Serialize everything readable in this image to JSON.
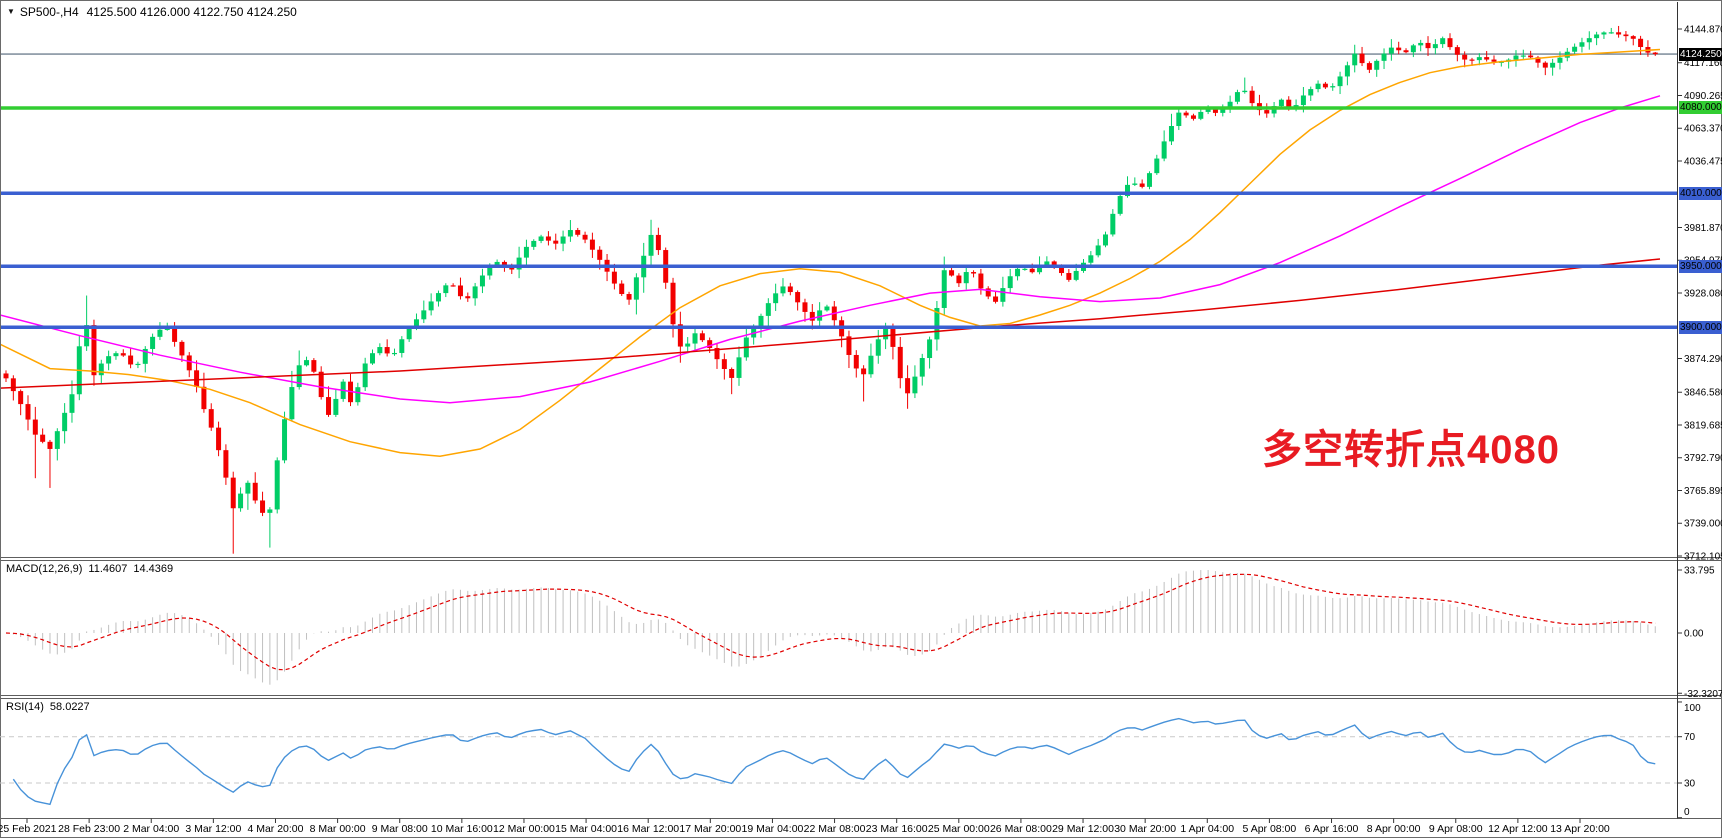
{
  "window": {
    "symbol": "SP500-,H4",
    "ohlc_text": "4125.500 4126.000 4122.750 4124.250"
  },
  "indicators": {
    "macd": {
      "label": "MACD(12,26,9)",
      "main": "11.4607",
      "signal": "14.4369"
    },
    "rsi": {
      "label": "RSI(14)",
      "value": "58.0227"
    }
  },
  "annotation": {
    "text": "多空转折点4080",
    "color": "#e81b22"
  },
  "chart_data": [
    {
      "type": "candlestick",
      "title": "SP500-,H4",
      "current_bar": {
        "open": 4125.5,
        "high": 4126.0,
        "low": 4122.75,
        "close": 4124.25
      },
      "price_range": {
        "top": 4144.87,
        "bottom": 3712.105
      },
      "y_axis_ticks": [
        "4144.870",
        "4117.160",
        "4090.265",
        "4063.370",
        "4036.475",
        "3981.870",
        "3954.975",
        "3928.080",
        "3874.290",
        "3846.580",
        "3819.685",
        "3792.790",
        "3765.895",
        "3739.000",
        "3712.105"
      ],
      "current_price": {
        "value": 4124.25,
        "label": "4124.250",
        "line_color": "#708090",
        "box_bg": "#000000",
        "box_fg": "#ffffff"
      },
      "levels": [
        {
          "price": 4080,
          "label": "4080.000",
          "color": "#32cd32"
        },
        {
          "price": 4010,
          "label": "4010.000",
          "color": "#3a5fd1"
        },
        {
          "price": 3950,
          "label": "3950.000",
          "color": "#3a5fd1"
        },
        {
          "price": 3900,
          "label": "3900.000",
          "color": "#3a5fd1"
        }
      ],
      "colors": {
        "up": "#00cd66",
        "down": "#f20000"
      },
      "bars": {
        "count": 226,
        "first_x": 6,
        "spacing": 7.33,
        "body_width": 5
      },
      "close_path": [
        [
          6,
          3858
        ],
        [
          20,
          3838
        ],
        [
          35,
          3812
        ],
        [
          50,
          3800
        ],
        [
          60,
          3820
        ],
        [
          72,
          3845
        ],
        [
          85,
          3915
        ],
        [
          92,
          3858
        ],
        [
          105,
          3875
        ],
        [
          120,
          3880
        ],
        [
          135,
          3865
        ],
        [
          150,
          3890
        ],
        [
          165,
          3902
        ],
        [
          180,
          3880
        ],
        [
          195,
          3855
        ],
        [
          205,
          3830
        ],
        [
          215,
          3810
        ],
        [
          228,
          3770
        ],
        [
          235,
          3745
        ],
        [
          245,
          3778
        ],
        [
          255,
          3758
        ],
        [
          268,
          3740
        ],
        [
          278,
          3795
        ],
        [
          288,
          3840
        ],
        [
          298,
          3868
        ],
        [
          310,
          3875
        ],
        [
          320,
          3845
        ],
        [
          330,
          3825
        ],
        [
          342,
          3858
        ],
        [
          352,
          3835
        ],
        [
          365,
          3870
        ],
        [
          378,
          3885
        ],
        [
          392,
          3875
        ],
        [
          405,
          3895
        ],
        [
          420,
          3910
        ],
        [
          435,
          3925
        ],
        [
          450,
          3938
        ],
        [
          465,
          3920
        ],
        [
          480,
          3940
        ],
        [
          495,
          3955
        ],
        [
          510,
          3945
        ],
        [
          525,
          3965
        ],
        [
          540,
          3975
        ],
        [
          555,
          3968
        ],
        [
          570,
          3980
        ],
        [
          585,
          3972
        ],
        [
          600,
          3955
        ],
        [
          615,
          3935
        ],
        [
          628,
          3920
        ],
        [
          640,
          3950
        ],
        [
          652,
          3978
        ],
        [
          662,
          3955
        ],
        [
          672,
          3905
        ],
        [
          682,
          3880
        ],
        [
          695,
          3895
        ],
        [
          708,
          3885
        ],
        [
          720,
          3870
        ],
        [
          732,
          3858
        ],
        [
          745,
          3890
        ],
        [
          758,
          3905
        ],
        [
          772,
          3925
        ],
        [
          785,
          3935
        ],
        [
          798,
          3920
        ],
        [
          812,
          3905
        ],
        [
          825,
          3920
        ],
        [
          838,
          3900
        ],
        [
          850,
          3875
        ],
        [
          862,
          3858
        ],
        [
          875,
          3885
        ],
        [
          888,
          3905
        ],
        [
          898,
          3862
        ],
        [
          908,
          3845
        ],
        [
          920,
          3870
        ],
        [
          932,
          3895
        ],
        [
          945,
          3950
        ],
        [
          958,
          3935
        ],
        [
          970,
          3950
        ],
        [
          982,
          3930
        ],
        [
          995,
          3920
        ],
        [
          1008,
          3940
        ],
        [
          1020,
          3950
        ],
        [
          1032,
          3945
        ],
        [
          1045,
          3955
        ],
        [
          1058,
          3948
        ],
        [
          1068,
          3938
        ],
        [
          1080,
          3950
        ],
        [
          1092,
          3960
        ],
        [
          1105,
          3975
        ],
        [
          1118,
          4005
        ],
        [
          1130,
          4020
        ],
        [
          1142,
          4015
        ],
        [
          1155,
          4035
        ],
        [
          1168,
          4060
        ],
        [
          1180,
          4078
        ],
        [
          1192,
          4070
        ],
        [
          1205,
          4080
        ],
        [
          1218,
          4075
        ],
        [
          1230,
          4085
        ],
        [
          1242,
          4098
        ],
        [
          1255,
          4080
        ],
        [
          1268,
          4075
        ],
        [
          1280,
          4088
        ],
        [
          1292,
          4078
        ],
        [
          1305,
          4092
        ],
        [
          1318,
          4100
        ],
        [
          1330,
          4095
        ],
        [
          1342,
          4108
        ],
        [
          1355,
          4125
        ],
        [
          1368,
          4110
        ],
        [
          1380,
          4122
        ],
        [
          1392,
          4130
        ],
        [
          1405,
          4125
        ],
        [
          1418,
          4135
        ],
        [
          1430,
          4128
        ],
        [
          1442,
          4138
        ],
        [
          1455,
          4125
        ],
        [
          1468,
          4118
        ],
        [
          1480,
          4122
        ],
        [
          1492,
          4118
        ],
        [
          1505,
          4118
        ],
        [
          1518,
          4124
        ],
        [
          1530,
          4122
        ],
        [
          1545,
          4113
        ],
        [
          1558,
          4120
        ],
        [
          1570,
          4128
        ],
        [
          1582,
          4134
        ],
        [
          1595,
          4140
        ],
        [
          1608,
          4143
        ],
        [
          1620,
          4140
        ],
        [
          1632,
          4138
        ],
        [
          1645,
          4126
        ],
        [
          1655,
          4124.25
        ]
      ],
      "wick_low_overrides": [
        [
          4,
          3776
        ],
        [
          6,
          3768
        ],
        [
          31,
          3714
        ],
        [
          33,
          3750
        ],
        [
          36,
          3719
        ],
        [
          99,
          3845
        ],
        [
          117,
          3839
        ],
        [
          123,
          3833
        ]
      ],
      "wick_high_overrides": [
        [
          11,
          3926
        ],
        [
          77,
          3988
        ],
        [
          88,
          3987
        ],
        [
          128,
          3958
        ],
        [
          169,
          4105
        ],
        [
          184,
          4131
        ],
        [
          216,
          4143
        ],
        [
          219,
          4144.9
        ]
      ],
      "ma_lines": [
        {
          "name": "ma-fast",
          "color": "#ffa500",
          "points": [
            [
              0,
              3886
            ],
            [
              50,
              3866
            ],
            [
              90,
              3864
            ],
            [
              130,
              3861
            ],
            [
              170,
              3856
            ],
            [
              210,
              3849
            ],
            [
              250,
              3838
            ],
            [
              300,
              3820
            ],
            [
              350,
              3806
            ],
            [
              400,
              3797
            ],
            [
              440,
              3794
            ],
            [
              480,
              3800
            ],
            [
              520,
              3816
            ],
            [
              560,
              3840
            ],
            [
              600,
              3866
            ],
            [
              640,
              3892
            ],
            [
              680,
              3916
            ],
            [
              720,
              3934
            ],
            [
              760,
              3944
            ],
            [
              800,
              3948
            ],
            [
              840,
              3945
            ],
            [
              880,
              3934
            ],
            [
              920,
              3918
            ],
            [
              950,
              3908
            ],
            [
              980,
              3901
            ],
            [
              1010,
              3903
            ],
            [
              1040,
              3910
            ],
            [
              1070,
              3918
            ],
            [
              1100,
              3928
            ],
            [
              1130,
              3940
            ],
            [
              1160,
              3954
            ],
            [
              1190,
              3972
            ],
            [
              1220,
              3994
            ],
            [
              1250,
              4018
            ],
            [
              1280,
              4042
            ],
            [
              1310,
              4062
            ],
            [
              1340,
              4078
            ],
            [
              1370,
              4091
            ],
            [
              1400,
              4101
            ],
            [
              1430,
              4109
            ],
            [
              1460,
              4114
            ],
            [
              1500,
              4118
            ],
            [
              1540,
              4121
            ],
            [
              1580,
              4124
            ],
            [
              1620,
              4126
            ],
            [
              1660,
              4128
            ]
          ]
        },
        {
          "name": "ma-medium",
          "color": "#ff00ff",
          "points": [
            [
              0,
              3910
            ],
            [
              80,
              3893
            ],
            [
              160,
              3877
            ],
            [
              240,
              3863
            ],
            [
              320,
              3851
            ],
            [
              400,
              3841
            ],
            [
              450,
              3838
            ],
            [
              520,
              3843
            ],
            [
              590,
              3855
            ],
            [
              660,
              3872
            ],
            [
              730,
              3890
            ],
            [
              800,
              3905
            ],
            [
              870,
              3918
            ],
            [
              930,
              3928
            ],
            [
              980,
              3931
            ],
            [
              1040,
              3925
            ],
            [
              1100,
              3921
            ],
            [
              1160,
              3924
            ],
            [
              1220,
              3935
            ],
            [
              1280,
              3953
            ],
            [
              1340,
              3975
            ],
            [
              1400,
              3999
            ],
            [
              1460,
              4022
            ],
            [
              1520,
              4046
            ],
            [
              1580,
              4068
            ],
            [
              1620,
              4080
            ],
            [
              1660,
              4090
            ]
          ]
        },
        {
          "name": "ma-slow",
          "color": "#e00000",
          "points": [
            [
              0,
              3850
            ],
            [
              200,
              3857
            ],
            [
              400,
              3864
            ],
            [
              600,
              3874
            ],
            [
              800,
              3887
            ],
            [
              1000,
              3901
            ],
            [
              1100,
              3907
            ],
            [
              1200,
              3914
            ],
            [
              1300,
              3922
            ],
            [
              1400,
              3931
            ],
            [
              1500,
              3941
            ],
            [
              1600,
              3951
            ],
            [
              1660,
              3956
            ]
          ]
        }
      ],
      "x_axis_labels": [
        "25 Feb 2021",
        "28 Feb 23:00",
        "2 Mar 04:00",
        "3 Mar 12:00",
        "4 Mar 20:00",
        "8 Mar 00:00",
        "9 Mar 08:00",
        "10 Mar 16:00",
        "12 Mar 00:00",
        "15 Mar 04:00",
        "16 Mar 12:00",
        "17 Mar 20:00",
        "19 Mar 04:00",
        "22 Mar 08:00",
        "23 Mar 16:00",
        "25 Mar 00:00",
        "26 Mar 08:00",
        "29 Mar 12:00",
        "30 Mar 20:00",
        "1 Apr 04:00",
        "5 Apr 08:00",
        "6 Apr 16:00",
        "8 Apr 00:00",
        "9 Apr 08:00",
        "12 Apr 12:00",
        "13 Apr 20:00"
      ],
      "legend_position": "none",
      "grid": false
    },
    {
      "type": "macd-histogram",
      "label": "MACD(12,26,9)",
      "main_value": 11.4607,
      "signal_value": 14.4369,
      "y_ticks": [
        "33.795",
        "0.00",
        "-32.3207"
      ],
      "range": {
        "top": 33.795,
        "bottom": -32.3207
      },
      "histogram_color": "#c0c0c0",
      "signal_color": "#e00000"
    },
    {
      "type": "line",
      "label": "RSI(14)",
      "current": 58.0227,
      "y_ticks": [
        "100",
        "70",
        "30",
        "0"
      ],
      "level_lines": [
        70,
        30
      ],
      "color": "#4792d9",
      "range": [
        0,
        100
      ]
    }
  ]
}
